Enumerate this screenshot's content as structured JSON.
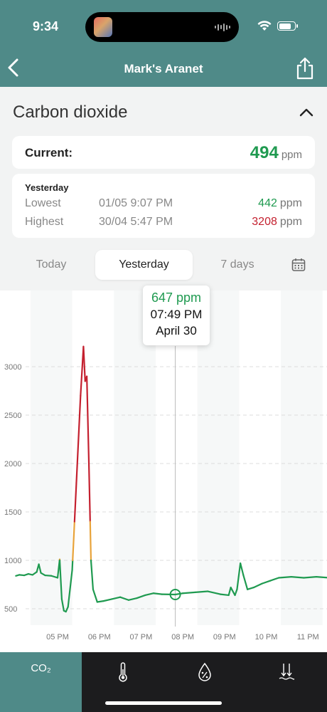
{
  "status_bar": {
    "time": "9:34"
  },
  "nav": {
    "title": "Mark's Aranet"
  },
  "section": {
    "title": "Carbon dioxide"
  },
  "current": {
    "label": "Current:",
    "value": "494",
    "unit": "ppm"
  },
  "yesterday": {
    "title": "Yesterday",
    "rows": [
      {
        "label": "Lowest",
        "datetime": "01/05 9:07 PM",
        "value": "442",
        "unit": "ppm"
      },
      {
        "label": "Highest",
        "datetime": "30/04 5:47 PM",
        "value": "3208",
        "unit": "ppm"
      }
    ]
  },
  "tabs": [
    {
      "label": "Today"
    },
    {
      "label": "Yesterday",
      "active": true
    },
    {
      "label": "7 days"
    }
  ],
  "tooltip": {
    "value": "647 ppm",
    "time": "07:49 PM",
    "date": "April 30"
  },
  "chart_data": {
    "type": "line",
    "ylabel": "",
    "xlabel": "",
    "x_ticks": [
      "05 PM",
      "06 PM",
      "07 PM",
      "08 PM",
      "09 PM",
      "10 PM",
      "11 PM"
    ],
    "y_ticks": [
      500,
      1000,
      1500,
      2000,
      2500,
      3000
    ],
    "xlim_hours": [
      16.0,
      23.5
    ],
    "ylim": [
      300,
      3500
    ],
    "grid": true,
    "color_thresholds": {
      "green_below": 1000,
      "orange_below": 1400,
      "red_above": 1400
    },
    "colors": {
      "green": "#1f9a50",
      "orange": "#e8a33a",
      "red": "#c4202f"
    },
    "series": [
      {
        "values": [
          [
            16.0,
            840
          ],
          [
            16.08,
            850
          ],
          [
            16.2,
            845
          ],
          [
            16.3,
            860
          ],
          [
            16.4,
            850
          ],
          [
            16.5,
            880
          ],
          [
            16.55,
            960
          ],
          [
            16.6,
            870
          ],
          [
            16.7,
            845
          ],
          [
            16.85,
            840
          ],
          [
            17.0,
            820
          ],
          [
            17.05,
            1010
          ],
          [
            17.1,
            600
          ],
          [
            17.15,
            480
          ],
          [
            17.2,
            470
          ],
          [
            17.25,
            520
          ],
          [
            17.35,
            900
          ],
          [
            17.45,
            1800
          ],
          [
            17.55,
            2700
          ],
          [
            17.62,
            3208
          ],
          [
            17.66,
            2850
          ],
          [
            17.7,
            2900
          ],
          [
            17.75,
            2000
          ],
          [
            17.8,
            1000
          ],
          [
            17.85,
            700
          ],
          [
            17.95,
            570
          ],
          [
            18.1,
            580
          ],
          [
            18.3,
            600
          ],
          [
            18.5,
            620
          ],
          [
            18.7,
            590
          ],
          [
            18.9,
            610
          ],
          [
            19.1,
            640
          ],
          [
            19.3,
            660
          ],
          [
            19.5,
            650
          ],
          [
            19.82,
            647
          ],
          [
            20.0,
            660
          ],
          [
            20.3,
            670
          ],
          [
            20.6,
            680
          ],
          [
            20.9,
            650
          ],
          [
            21.1,
            640
          ],
          [
            21.15,
            720
          ],
          [
            21.25,
            640
          ],
          [
            21.3,
            700
          ],
          [
            21.38,
            970
          ],
          [
            21.45,
            850
          ],
          [
            21.55,
            700
          ],
          [
            21.7,
            720
          ],
          [
            21.9,
            760
          ],
          [
            22.1,
            790
          ],
          [
            22.3,
            820
          ],
          [
            22.6,
            830
          ],
          [
            22.9,
            820
          ],
          [
            23.2,
            830
          ],
          [
            23.5,
            820
          ]
        ]
      }
    ]
  },
  "bottom_tabs": [
    {
      "label": "CO₂",
      "active": true,
      "icon": "co2"
    },
    {
      "label": "",
      "icon": "thermometer-icon"
    },
    {
      "label": "",
      "icon": "humidity-icon"
    },
    {
      "label": "",
      "icon": "pressure-icon"
    }
  ]
}
